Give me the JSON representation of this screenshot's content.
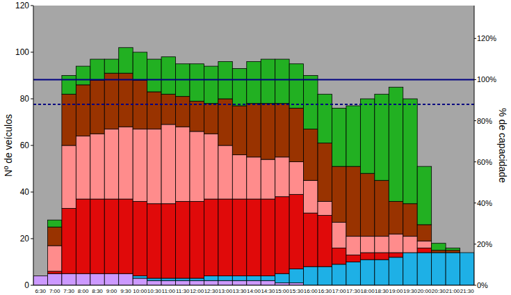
{
  "chart_data": {
    "type": "bar",
    "stacked": true,
    "grid": false,
    "y_label": "Nº de veículos",
    "y2_label": "% de capacidade",
    "categories": [
      "6:30",
      "7:00",
      "7:30",
      "8:00",
      "8:30",
      "9:00",
      "9:30",
      "10:00",
      "10:30",
      "11:00",
      "11:30",
      "12:00",
      "12:30",
      "13:00",
      "13:30",
      "14:00",
      "14:30",
      "15:00",
      "15:30",
      "16:00",
      "16:30",
      "17:00",
      "17:30",
      "18:00",
      "18:30",
      "19:00",
      "19:30",
      "20:00",
      "20:30",
      "21:00",
      "21:30"
    ],
    "series": [
      {
        "color": "#cc99ff",
        "values": [
          4,
          5,
          5,
          5,
          5,
          5,
          5,
          3,
          2,
          2,
          2,
          2,
          2,
          2,
          2,
          2,
          2,
          1,
          1,
          0,
          0,
          0,
          0,
          0,
          0,
          0,
          0,
          0,
          0,
          0,
          0
        ]
      },
      {
        "color": "#1eb0e6",
        "values": [
          0,
          0,
          0,
          0,
          0,
          0,
          0,
          1,
          1,
          1,
          1,
          1,
          2,
          2,
          2,
          2,
          2,
          4,
          6,
          8,
          8,
          9,
          10,
          11,
          11,
          12,
          14,
          14,
          14,
          14,
          14
        ]
      },
      {
        "color": "#e00a0a",
        "values": [
          0,
          1,
          28,
          32,
          32,
          32,
          32,
          32,
          32,
          32,
          33,
          33,
          33,
          33,
          33,
          33,
          33,
          33,
          32,
          23,
          22,
          7,
          3,
          3,
          3,
          2,
          0,
          2,
          0,
          0,
          0
        ]
      },
      {
        "color": "#ff8c8c",
        "values": [
          0,
          11,
          27,
          27,
          28,
          30,
          31,
          31,
          32,
          34,
          32,
          30,
          28,
          23,
          19,
          18,
          17,
          17,
          14,
          14,
          6,
          11,
          8,
          7,
          7,
          8,
          7,
          3,
          0,
          0,
          0
        ]
      },
      {
        "color": "#993300",
        "values": [
          0,
          8,
          22,
          22,
          23,
          24,
          23,
          21,
          16,
          13,
          13,
          13,
          13,
          20,
          21,
          23,
          24,
          23,
          23,
          22,
          25,
          24,
          30,
          27,
          24,
          14,
          14,
          7,
          1,
          1,
          0
        ]
      },
      {
        "color": "#22b022",
        "values": [
          0,
          3,
          8,
          8,
          9,
          6,
          11,
          12,
          14,
          16,
          14,
          16,
          16,
          16,
          16,
          18,
          19,
          19,
          19,
          23,
          21,
          25,
          26,
          32,
          37,
          49,
          45,
          25,
          3,
          1,
          0
        ]
      }
    ],
    "ylim": [
      0,
      120
    ],
    "yticks": [
      0,
      20,
      40,
      60,
      80,
      100,
      120
    ],
    "y2lim": [
      0,
      136
    ],
    "y2ticks": [
      {
        "value": 0,
        "label": "0%"
      },
      {
        "value": 20,
        "label": "20%"
      },
      {
        "value": 40,
        "label": "40%"
      },
      {
        "value": 60,
        "label": "60%"
      },
      {
        "value": 80,
        "label": "80%"
      },
      {
        "value": 100,
        "label": "100%"
      },
      {
        "value": 120,
        "label": "120%"
      }
    ],
    "reference_lines": [
      {
        "value": 100,
        "axis": "y2",
        "color": "#000080",
        "line_style": "solid"
      },
      {
        "value": 88,
        "axis": "y2",
        "color": "#000080",
        "line_style": "dashed"
      }
    ]
  }
}
